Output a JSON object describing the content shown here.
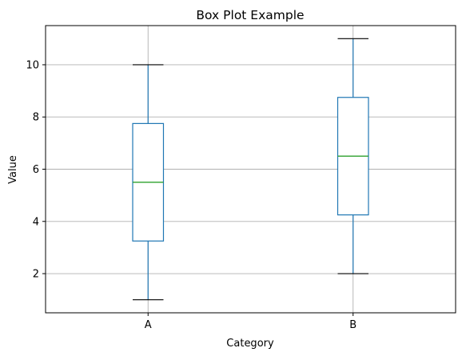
{
  "chart_data": {
    "type": "box",
    "title": "Box Plot Example",
    "xlabel": "Category",
    "ylabel": "Value",
    "ylim": [
      0.5,
      11.5
    ],
    "yticks": [
      2,
      4,
      6,
      8,
      10
    ],
    "grid": true,
    "categories": [
      "A",
      "B"
    ],
    "boxes": [
      {
        "category": "A",
        "min": 1,
        "q1": 3.25,
        "median": 5.5,
        "q3": 7.75,
        "max": 10
      },
      {
        "category": "B",
        "min": 2,
        "q1": 4.25,
        "median": 6.5,
        "q3": 8.75,
        "max": 11
      }
    ],
    "colors": {
      "box": "#1f77b4",
      "median": "#2ca02c",
      "whisker_cap": "#000000",
      "grid": "#b0b0b0"
    }
  }
}
